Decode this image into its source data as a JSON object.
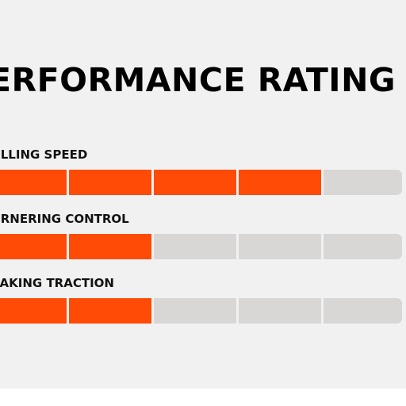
{
  "title": "ERFORMANCE RATING",
  "colors": {
    "background": "#f1f1f1",
    "filled": "#ff4b06",
    "empty": "#d9d7d5",
    "text": "#000000"
  },
  "ratings": [
    {
      "label": "OLLING SPEED",
      "level": 4,
      "max": 5
    },
    {
      "label": "ORNERING CONTROL",
      "level": 2,
      "max": 5
    },
    {
      "label": "RAKING TRACTION",
      "level": 2,
      "max": 5
    }
  ]
}
